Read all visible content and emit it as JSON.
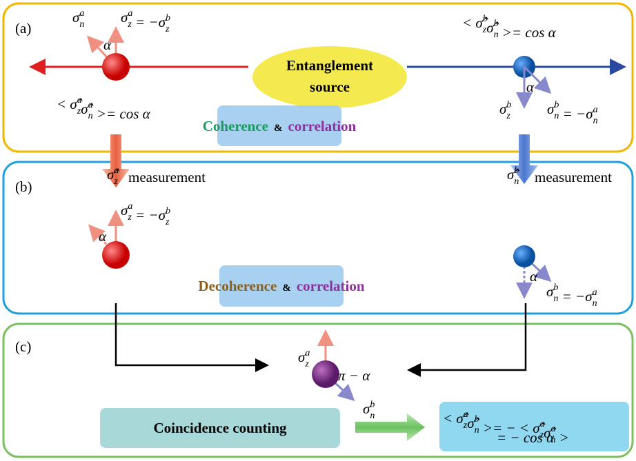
{
  "panels": [
    {
      "label": "(a)"
    },
    {
      "label": "(b)"
    },
    {
      "label": "(c)"
    }
  ],
  "source": {
    "line1": "Entanglement",
    "line2": "source"
  },
  "boxes": {
    "coherence": {
      "w1": "Coherence",
      "amp": "&",
      "w2": "correlation"
    },
    "decoherence": {
      "w1": "Decoherence",
      "amp": "&",
      "w2": "correlation"
    },
    "counting": "Coincidence counting"
  },
  "measurement": [
    "measurement",
    "measurement"
  ],
  "formulas": [
    [
      {
        "b": "σ",
        "sub": "n",
        "sup": "a"
      }
    ],
    [
      {
        "b": "σ",
        "sub": "z",
        "sup": "a"
      },
      " = −",
      {
        "b": "σ",
        "sub": "z",
        "sup": "b"
      }
    ],
    [
      "α"
    ],
    [
      "< ",
      {
        "b": "σ̂",
        "sub": "z",
        "sup": "a"
      },
      {
        "b": "σ̂",
        "sub": "n",
        "sup": "a"
      },
      " >= cos α"
    ],
    [
      "< ",
      {
        "b": "σ̂",
        "sub": "z",
        "sup": "b"
      },
      {
        "b": "σ̂",
        "sub": "n",
        "sup": "b"
      },
      " >= cos α"
    ],
    [
      {
        "b": "σ",
        "sub": "z",
        "sup": "b"
      }
    ],
    [
      {
        "b": "σ",
        "sub": "n",
        "sup": "b"
      },
      " = −",
      {
        "b": "σ",
        "sub": "n",
        "sup": "a"
      }
    ],
    [
      "α"
    ],
    [
      {
        "b": "σ̂",
        "sub": "z",
        "sup": "a"
      }
    ],
    [
      {
        "b": "σ̂",
        "sub": "n",
        "sup": "b"
      }
    ],
    [
      {
        "b": "σ",
        "sub": "z",
        "sup": "a"
      },
      " = −",
      {
        "b": "σ",
        "sub": "z",
        "sup": "b"
      }
    ],
    [
      "α"
    ],
    [
      {
        "b": "σ",
        "sub": "n",
        "sup": "b"
      },
      " = −",
      {
        "b": "σ",
        "sub": "n",
        "sup": "a"
      }
    ],
    [
      "α"
    ],
    [
      {
        "b": "σ",
        "sub": "z",
        "sup": "a"
      }
    ],
    [
      "π − α"
    ],
    [
      {
        "b": "σ",
        "sub": "n",
        "sup": "b"
      }
    ],
    [
      "< ",
      {
        "b": "σ̂",
        "sub": "z",
        "sup": "a"
      },
      {
        "b": "σ̂",
        "sub": "n",
        "sup": "b"
      },
      " >= − < ",
      {
        "b": "σ̂",
        "sub": "z",
        "sup": "a"
      },
      {
        "b": "σ̂",
        "sub": "n",
        "sup": "a"
      },
      " >"
    ],
    [
      "= − cos α"
    ]
  ]
}
